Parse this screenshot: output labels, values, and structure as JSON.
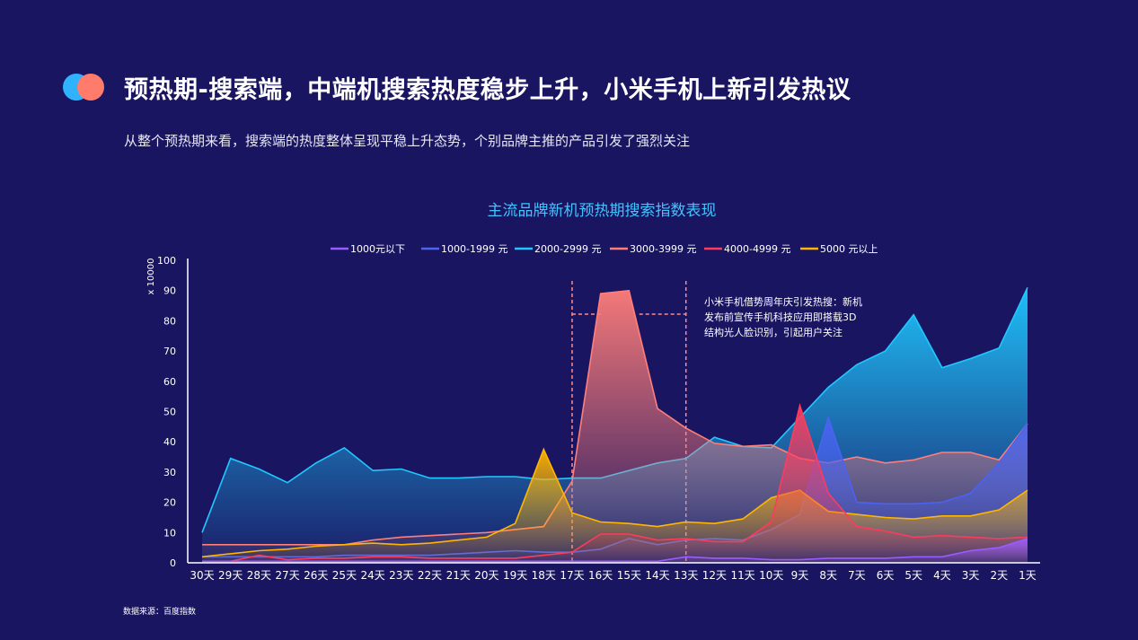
{
  "header": {
    "title": "预热期-搜索端，中端机搜索热度稳步上升，小米手机上新引发热议",
    "subtitle": "从整个预热期来看，搜索端的热度整体呈现平稳上升态势，个别品牌主推的产品引发了强烈关注"
  },
  "footer": {
    "source": "数据来源：百度指数"
  },
  "chart_data": {
    "type": "area",
    "title": "主流品牌新机预热期搜索指数表现",
    "ylabel": "x 10000",
    "xlabel": "",
    "ylim": [
      0,
      100
    ],
    "yticks": [
      0,
      10,
      20,
      30,
      40,
      50,
      60,
      70,
      80,
      90,
      100
    ],
    "legend_position": "top",
    "categories": [
      "30天",
      "29天",
      "28天",
      "27天",
      "26天",
      "25天",
      "24天",
      "23天",
      "22天",
      "21天",
      "20天",
      "19天",
      "18天",
      "17天",
      "16天",
      "15天",
      "14天",
      "13天",
      "12天",
      "11天",
      "10天",
      "9天",
      "8天",
      "7天",
      "6天",
      "5天",
      "4天",
      "3天",
      "2天",
      "1天"
    ],
    "series": [
      {
        "name": "1000元以下",
        "color": "#9b5cff",
        "values": [
          0.5,
          0.5,
          0.5,
          0.5,
          0.5,
          0.5,
          0.5,
          0.5,
          0.5,
          0.5,
          0.5,
          0.5,
          0.5,
          0.5,
          0.5,
          0.5,
          0.5,
          2,
          1.5,
          1.5,
          1,
          1,
          1.5,
          1.5,
          1.5,
          2,
          2,
          4,
          5,
          8
        ]
      },
      {
        "name": "1000-1999 元",
        "color": "#4a63f0",
        "values": [
          2,
          2,
          2,
          2,
          2,
          2.5,
          2.5,
          2.5,
          2.5,
          3,
          3.5,
          4,
          3.5,
          3.5,
          4.5,
          8,
          6,
          7.5,
          8,
          7.5,
          11,
          16,
          48,
          20,
          19.5,
          19.5,
          20,
          23,
          33,
          46
        ]
      },
      {
        "name": "2000-2999 元",
        "color": "#1fc8ff",
        "values": [
          10,
          34.5,
          31,
          26.5,
          33,
          38,
          30.5,
          31,
          28,
          28,
          28.5,
          28.5,
          27.5,
          28,
          28,
          30.5,
          33,
          34.5,
          41.5,
          38.5,
          38,
          48,
          58,
          65.5,
          70,
          82,
          64.5,
          67.5,
          71,
          91
        ]
      },
      {
        "name": "3000-3999 元",
        "color": "#ff7e7a",
        "values": [
          6,
          6,
          6,
          6,
          6,
          6,
          7.5,
          8.5,
          9,
          9.5,
          10,
          11,
          12,
          27,
          89,
          90,
          51,
          44.5,
          39.5,
          38.5,
          39,
          34.5,
          33,
          35,
          33,
          34,
          36.5,
          36.5,
          34,
          46
        ]
      },
      {
        "name": "4000-4999 元",
        "color": "#ff3b5c",
        "values": [
          0.5,
          0.5,
          2.5,
          1,
          1.5,
          1.5,
          2,
          2,
          1.5,
          1.5,
          1.5,
          1.5,
          2.5,
          3.5,
          9.5,
          9.5,
          7.5,
          8,
          7,
          7,
          13.5,
          52,
          23,
          12,
          10.5,
          8.5,
          9,
          8.5,
          8,
          8.5
        ]
      },
      {
        "name": "5000 元以上",
        "color": "#ffb600",
        "values": [
          2,
          3,
          4,
          4.5,
          5.5,
          6,
          6.5,
          6,
          6.5,
          7.5,
          8.5,
          13,
          37.5,
          16.5,
          13.5,
          13,
          12,
          13.5,
          13,
          14.5,
          21.5,
          24,
          17,
          16,
          15,
          14.5,
          15.5,
          15.5,
          17.5,
          24
        ]
      }
    ],
    "annotation": {
      "text_lines": [
        "小米手机借势周年庆引发热搜：新机",
        "发布前宣传手机科技应用即搭载3D",
        "结构光人脸识别，引起用户关注"
      ],
      "range": [
        "17天",
        "13天"
      ]
    }
  }
}
